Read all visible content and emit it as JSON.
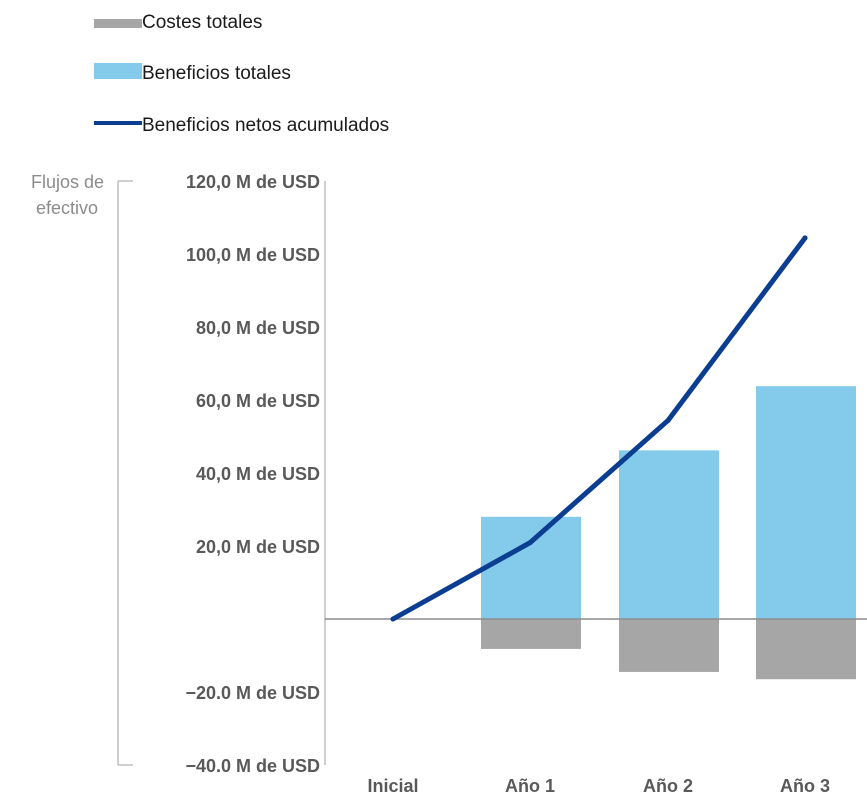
{
  "chart_data": {
    "type": "bar",
    "categories": [
      "Inicial",
      "Año 1",
      "Año 2",
      "Año 3"
    ],
    "series": [
      {
        "name": "Costes totales",
        "kind": "bar",
        "color": "#a6a6a6",
        "values": [
          0,
          -8.2,
          -14.5,
          -16.5
        ]
      },
      {
        "name": "Beneficios totales",
        "kind": "bar",
        "color": "#84cbeb",
        "values": [
          0,
          28.0,
          46.2,
          63.8
        ]
      },
      {
        "name": "Beneficios netos acumulados",
        "kind": "line",
        "color": "#0b3d91",
        "values": [
          0,
          20.9,
          54.4,
          104.4
        ]
      }
    ],
    "ylabel": "Flujos de efectivo",
    "ylim": [
      -40,
      120
    ],
    "yticks": [
      {
        "value": 120,
        "label": "120,0 M de USD"
      },
      {
        "value": 100,
        "label": "100,0 M de USD"
      },
      {
        "value": 80,
        "label": "80,0 M de USD"
      },
      {
        "value": 60,
        "label": "60,0 M de USD"
      },
      {
        "value": 40,
        "label": "40,0 M de USD"
      },
      {
        "value": 20,
        "label": "20,0 M de USD"
      },
      {
        "value": -20,
        "label": "−20.0 M de USD"
      },
      {
        "value": -40,
        "label": "−40.0 M de USD"
      }
    ],
    "legend_position": "top-left",
    "grid": false
  }
}
